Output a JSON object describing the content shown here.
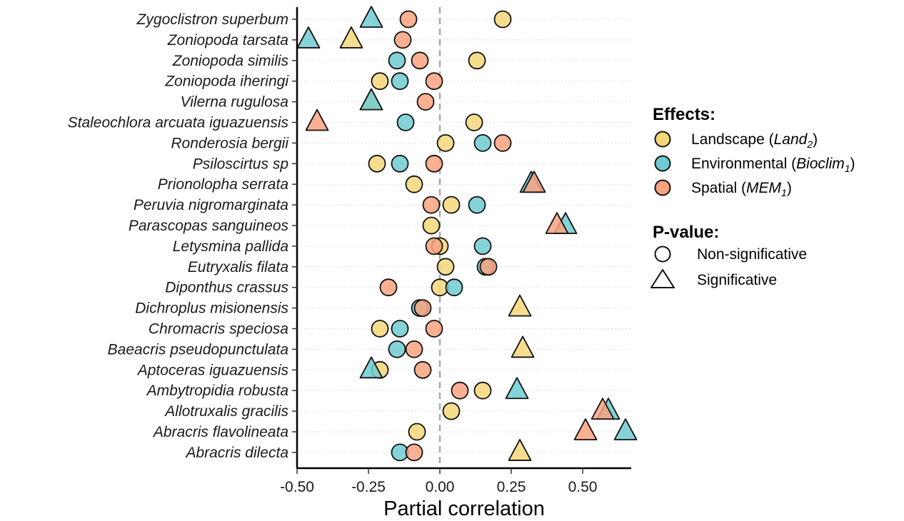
{
  "chart_data": {
    "type": "scatter",
    "xlabel": "Partial correlation",
    "ylabel": "",
    "xlim": [
      -0.5,
      0.67
    ],
    "x_ticks": [
      "-0.50",
      "-0.25",
      "0.00",
      "0.25",
      "0.50"
    ],
    "x_tick_values": [
      -0.5,
      -0.25,
      0,
      0.25,
      0.5
    ],
    "reference_line": 0,
    "grid": "horizontal dotted",
    "legend_placement": "right",
    "categories": [
      "Zygoclistron superbum",
      "Zoniopoda tarsata",
      "Zoniopoda similis",
      "Zoniopoda iheringi",
      "Vilerna rugulosa",
      "Staleochlora arcuata iguazuensis",
      "Ronderosia bergii",
      "Psiloscirtus sp",
      "Prionolopha serrata",
      "Peruvia nigromarginata",
      "Parascopas sanguineos",
      "Letysmina pallida ",
      "Eutryxalis filata",
      "Diponthus crassus",
      "Dichroplus misionensis",
      "Chromacris speciosa",
      "Baeacris pseudopunctulata ",
      "Aptoceras iguazuensis",
      "Ambytropidia robusta",
      "Allotruxalis gracilis",
      "Abracris flavolineata",
      "Abracris dilecta"
    ],
    "series": [
      {
        "key": "landscape",
        "color": "#F4D77A",
        "points": [
          {
            "species": 0,
            "x": 0.22,
            "significant": false
          },
          {
            "species": 1,
            "x": -0.31,
            "significant": true
          },
          {
            "species": 2,
            "x": 0.13,
            "significant": false
          },
          {
            "species": 3,
            "x": -0.21,
            "significant": false
          },
          {
            "species": 4,
            "x": -0.24,
            "significant": true
          },
          {
            "species": 5,
            "x": 0.12,
            "significant": false
          },
          {
            "species": 6,
            "x": 0.02,
            "significant": false
          },
          {
            "species": 7,
            "x": -0.22,
            "significant": false
          },
          {
            "species": 8,
            "x": -0.09,
            "significant": false
          },
          {
            "species": 9,
            "x": 0.04,
            "significant": false
          },
          {
            "species": 10,
            "x": -0.03,
            "significant": false
          },
          {
            "species": 11,
            "x": 0.0,
            "significant": false
          },
          {
            "species": 12,
            "x": 0.02,
            "significant": false
          },
          {
            "species": 13,
            "x": 0.0,
            "significant": false
          },
          {
            "species": 14,
            "x": 0.28,
            "significant": true
          },
          {
            "species": 15,
            "x": -0.21,
            "significant": false
          },
          {
            "species": 16,
            "x": 0.29,
            "significant": true
          },
          {
            "species": 17,
            "x": -0.21,
            "significant": false
          },
          {
            "species": 18,
            "x": 0.15,
            "significant": false
          },
          {
            "species": 19,
            "x": 0.04,
            "significant": false
          },
          {
            "species": 20,
            "x": -0.08,
            "significant": false
          },
          {
            "species": 21,
            "x": 0.28,
            "significant": true
          }
        ]
      },
      {
        "key": "environmental",
        "color": "#6FCBD1",
        "points": [
          {
            "species": 0,
            "x": -0.24,
            "significant": true
          },
          {
            "species": 1,
            "x": -0.46,
            "significant": true
          },
          {
            "species": 2,
            "x": -0.15,
            "significant": false
          },
          {
            "species": 3,
            "x": -0.14,
            "significant": false
          },
          {
            "species": 4,
            "x": -0.24,
            "significant": true
          },
          {
            "species": 5,
            "x": -0.12,
            "significant": false
          },
          {
            "species": 6,
            "x": 0.15,
            "significant": false
          },
          {
            "species": 7,
            "x": -0.14,
            "significant": false
          },
          {
            "species": 8,
            "x": 0.32,
            "significant": true
          },
          {
            "species": 9,
            "x": 0.13,
            "significant": false
          },
          {
            "species": 10,
            "x": 0.44,
            "significant": true
          },
          {
            "species": 11,
            "x": 0.15,
            "significant": false
          },
          {
            "species": 12,
            "x": 0.16,
            "significant": false
          },
          {
            "species": 13,
            "x": 0.05,
            "significant": false
          },
          {
            "species": 14,
            "x": -0.07,
            "significant": false
          },
          {
            "species": 15,
            "x": -0.14,
            "significant": false
          },
          {
            "species": 16,
            "x": -0.15,
            "significant": false
          },
          {
            "species": 17,
            "x": -0.24,
            "significant": true
          },
          {
            "species": 18,
            "x": 0.27,
            "significant": true
          },
          {
            "species": 19,
            "x": 0.59,
            "significant": true
          },
          {
            "species": 20,
            "x": 0.65,
            "significant": true
          },
          {
            "species": 21,
            "x": -0.14,
            "significant": false
          }
        ]
      },
      {
        "key": "spatial",
        "color": "#F9A27F",
        "points": [
          {
            "species": 0,
            "x": -0.11,
            "significant": false
          },
          {
            "species": 1,
            "x": -0.13,
            "significant": false
          },
          {
            "species": 2,
            "x": -0.07,
            "significant": false
          },
          {
            "species": 3,
            "x": -0.02,
            "significant": false
          },
          {
            "species": 4,
            "x": -0.05,
            "significant": false
          },
          {
            "species": 5,
            "x": -0.43,
            "significant": true
          },
          {
            "species": 6,
            "x": 0.22,
            "significant": false
          },
          {
            "species": 7,
            "x": -0.02,
            "significant": false
          },
          {
            "species": 8,
            "x": 0.33,
            "significant": true
          },
          {
            "species": 9,
            "x": -0.03,
            "significant": false
          },
          {
            "species": 10,
            "x": 0.41,
            "significant": true
          },
          {
            "species": 11,
            "x": -0.02,
            "significant": false
          },
          {
            "species": 12,
            "x": 0.17,
            "significant": false
          },
          {
            "species": 13,
            "x": -0.18,
            "significant": false
          },
          {
            "species": 14,
            "x": -0.06,
            "significant": false
          },
          {
            "species": 15,
            "x": -0.02,
            "significant": false
          },
          {
            "species": 16,
            "x": -0.09,
            "significant": false
          },
          {
            "species": 17,
            "x": -0.06,
            "significant": false
          },
          {
            "species": 18,
            "x": 0.07,
            "significant": false
          },
          {
            "species": 19,
            "x": 0.57,
            "significant": true
          },
          {
            "species": 20,
            "x": 0.51,
            "significant": true
          },
          {
            "species": 21,
            "x": -0.09,
            "significant": false
          }
        ]
      }
    ]
  },
  "legend": {
    "effects_title": "Effects:",
    "effects": [
      {
        "key": "landscape",
        "label_prefix": "Landscape (",
        "label_italic": "Land",
        "label_sub": "2",
        "label_suffix": ")"
      },
      {
        "key": "environmental",
        "label_prefix": "Environmental (",
        "label_italic": "Bioclim",
        "label_sub": "1",
        "label_suffix": ")"
      },
      {
        "key": "spatial",
        "label_prefix": "Spatial (",
        "label_italic": "MEM",
        "label_sub": "1",
        "label_suffix": ")"
      }
    ],
    "pvalue_title": "P-value:",
    "pvalue": [
      {
        "shape": "circle",
        "label": "Non-significative"
      },
      {
        "shape": "triangle",
        "label": "Significative"
      }
    ]
  }
}
